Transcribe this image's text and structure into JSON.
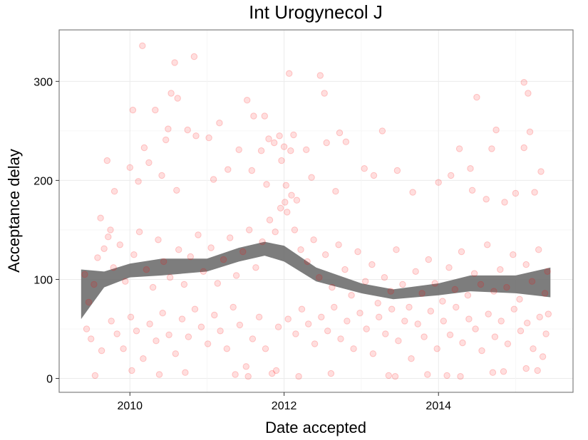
{
  "chart_data": {
    "type": "scatter",
    "title": "Int Urogynecol J",
    "xlabel": "Date accepted",
    "ylabel": "Acceptance delay",
    "x_axis": "date",
    "xlim": [
      "2009-01-31",
      "2015-09-30"
    ],
    "ylim": [
      -14,
      352
    ],
    "x_ticks": [
      {
        "value": "2010-01-01",
        "label": "2010"
      },
      {
        "value": "2012-01-01",
        "label": "2012"
      },
      {
        "value": "2014-01-01",
        "label": "2014"
      }
    ],
    "y_ticks": [
      {
        "value": 0,
        "label": "0"
      },
      {
        "value": 100,
        "label": "100"
      },
      {
        "value": 200,
        "label": "200"
      },
      {
        "value": 300,
        "label": "300"
      }
    ],
    "grid": true,
    "point_color": "#ff0000",
    "point_opacity": 0.13,
    "smooth_color": "#666666",
    "smooth_band": [
      {
        "x": "2009-05-15",
        "lower": 60,
        "upper": 110
      },
      {
        "x": "2009-09-01",
        "lower": 92,
        "upper": 108
      },
      {
        "x": "2010-01-01",
        "lower": 102,
        "upper": 116
      },
      {
        "x": "2010-06-01",
        "lower": 104,
        "upper": 121
      },
      {
        "x": "2011-01-01",
        "lower": 108,
        "upper": 121
      },
      {
        "x": "2011-06-01",
        "lower": 118,
        "upper": 132
      },
      {
        "x": "2011-10-01",
        "lower": 124,
        "upper": 138
      },
      {
        "x": "2012-01-01",
        "lower": 118,
        "upper": 134
      },
      {
        "x": "2012-06-01",
        "lower": 98,
        "upper": 112
      },
      {
        "x": "2013-01-01",
        "lower": 86,
        "upper": 96
      },
      {
        "x": "2013-06-01",
        "lower": 80,
        "upper": 90
      },
      {
        "x": "2014-01-01",
        "lower": 84,
        "upper": 96
      },
      {
        "x": "2014-06-01",
        "lower": 88,
        "upper": 104
      },
      {
        "x": "2015-01-01",
        "lower": 86,
        "upper": 104
      },
      {
        "x": "2015-06-15",
        "lower": 82,
        "upper": 112
      }
    ],
    "points": [
      [
        "2010-03-01",
        336
      ],
      [
        "2010-11-01",
        325
      ],
      [
        "2010-08-01",
        319
      ],
      [
        "2012-01-25",
        308
      ],
      [
        "2012-06-20",
        306
      ],
      [
        "2015-02-10",
        299
      ],
      [
        "2015-03-01",
        288
      ],
      [
        "2010-07-15",
        288
      ],
      [
        "2012-07-10",
        288
      ],
      [
        "2014-07-01",
        284
      ],
      [
        "2010-08-15",
        283
      ],
      [
        "2011-07-10",
        281
      ],
      [
        "2010-01-15",
        271
      ],
      [
        "2010-05-01",
        271
      ],
      [
        "2011-03-01",
        258
      ],
      [
        "2011-10-01",
        265
      ],
      [
        "2011-08-10",
        265
      ],
      [
        "2010-07-01",
        252
      ],
      [
        "2010-10-01",
        251
      ],
      [
        "2010-11-10",
        245
      ],
      [
        "2012-09-20",
        248
      ],
      [
        "2012-10-20",
        239
      ],
      [
        "2013-04-10",
        250
      ],
      [
        "2014-10-01",
        251
      ],
      [
        "2015-03-10",
        249
      ],
      [
        "2011-12-10",
        245
      ],
      [
        "2012-02-15",
        246
      ],
      [
        "2011-06-01",
        231
      ],
      [
        "2011-10-20",
        242
      ],
      [
        "2011-11-15",
        238
      ],
      [
        "2012-01-01",
        234
      ],
      [
        "2009-09-15",
        220
      ],
      [
        "2009-10-20",
        189
      ],
      [
        "2010-03-10",
        233
      ],
      [
        "2010-06-20",
        241
      ],
      [
        "2011-01-10",
        243
      ],
      [
        "2011-09-15",
        230
      ],
      [
        "2011-12-20",
        220
      ],
      [
        "2012-02-01",
        230
      ],
      [
        "2012-04-15",
        231
      ],
      [
        "2012-07-20",
        238
      ],
      [
        "2014-09-10",
        232
      ],
      [
        "2015-02-10",
        233
      ],
      [
        "2013-01-15",
        212
      ],
      [
        "2014-04-10",
        232
      ],
      [
        "2014-06-01",
        212
      ],
      [
        "2015-05-01",
        209
      ],
      [
        "2009-08-15",
        162
      ],
      [
        "2009-10-01",
        150
      ],
      [
        "2010-01-01",
        213
      ],
      [
        "2010-02-10",
        199
      ],
      [
        "2010-04-01",
        218
      ],
      [
        "2010-06-01",
        205
      ],
      [
        "2010-08-10",
        190
      ],
      [
        "2011-02-01",
        201
      ],
      [
        "2011-04-10",
        211
      ],
      [
        "2011-08-01",
        210
      ],
      [
        "2011-10-10",
        196
      ],
      [
        "2012-01-10",
        195
      ],
      [
        "2012-03-01",
        180
      ],
      [
        "2012-05-10",
        203
      ],
      [
        "2012-09-01",
        189
      ],
      [
        "2013-03-01",
        205
      ],
      [
        "2013-06-20",
        210
      ],
      [
        "2013-09-01",
        188
      ],
      [
        "2014-01-01",
        198
      ],
      [
        "2014-03-01",
        205
      ],
      [
        "2014-06-10",
        190
      ],
      [
        "2014-08-15",
        181
      ],
      [
        "2014-11-10",
        178
      ],
      [
        "2015-01-01",
        187
      ],
      [
        "2015-04-01",
        188
      ],
      [
        "2009-06-01",
        105
      ],
      [
        "2009-06-20",
        77
      ],
      [
        "2009-07-15",
        95
      ],
      [
        "2009-08-01",
        122
      ],
      [
        "2009-09-01",
        131
      ],
      [
        "2009-09-20",
        143
      ],
      [
        "2009-10-15",
        112
      ],
      [
        "2009-11-15",
        135
      ],
      [
        "2009-12-10",
        98
      ],
      [
        "2010-01-20",
        125
      ],
      [
        "2010-02-15",
        148
      ],
      [
        "2010-03-20",
        110
      ],
      [
        "2010-04-20",
        92
      ],
      [
        "2010-05-15",
        140
      ],
      [
        "2010-06-10",
        118
      ],
      [
        "2010-07-10",
        102
      ],
      [
        "2010-08-20",
        130
      ],
      [
        "2010-09-15",
        95
      ],
      [
        "2010-10-15",
        123
      ],
      [
        "2010-11-20",
        145
      ],
      [
        "2010-12-15",
        108
      ],
      [
        "2011-01-20",
        132
      ],
      [
        "2011-02-20",
        96
      ],
      [
        "2011-03-20",
        120
      ],
      [
        "2011-04-20",
        142
      ],
      [
        "2011-05-20",
        104
      ],
      [
        "2011-06-20",
        128
      ],
      [
        "2011-07-20",
        150
      ],
      [
        "2011-08-20",
        112
      ],
      [
        "2011-09-20",
        138
      ],
      [
        "2011-10-25",
        160
      ],
      [
        "2011-11-20",
        148
      ],
      [
        "2011-12-15",
        172
      ],
      [
        "2012-01-05",
        178
      ],
      [
        "2012-01-15",
        168
      ],
      [
        "2012-02-05",
        185
      ],
      [
        "2012-02-20",
        150
      ],
      [
        "2012-03-20",
        130
      ],
      [
        "2012-04-20",
        118
      ],
      [
        "2012-05-20",
        140
      ],
      [
        "2012-06-15",
        102
      ],
      [
        "2012-07-15",
        125
      ],
      [
        "2012-08-15",
        92
      ],
      [
        "2012-09-15",
        135
      ],
      [
        "2012-10-15",
        110
      ],
      [
        "2012-11-15",
        84
      ],
      [
        "2012-12-15",
        128
      ],
      [
        "2013-01-20",
        98
      ],
      [
        "2013-02-20",
        115
      ],
      [
        "2013-03-20",
        76
      ],
      [
        "2013-04-20",
        102
      ],
      [
        "2013-05-20",
        88
      ],
      [
        "2013-06-15",
        130
      ],
      [
        "2013-07-15",
        95
      ],
      [
        "2013-08-15",
        72
      ],
      [
        "2013-09-15",
        108
      ],
      [
        "2013-10-15",
        86
      ],
      [
        "2013-11-15",
        120
      ],
      [
        "2013-12-15",
        96
      ],
      [
        "2014-01-20",
        78
      ],
      [
        "2014-02-20",
        112
      ],
      [
        "2014-03-20",
        90
      ],
      [
        "2014-04-20",
        128
      ],
      [
        "2014-05-20",
        84
      ],
      [
        "2014-06-20",
        106
      ],
      [
        "2014-07-20",
        95
      ],
      [
        "2014-08-20",
        135
      ],
      [
        "2014-09-20",
        88
      ],
      [
        "2014-10-20",
        110
      ],
      [
        "2014-11-20",
        92
      ],
      [
        "2014-12-20",
        125
      ],
      [
        "2015-01-20",
        80
      ],
      [
        "2015-02-20",
        115
      ],
      [
        "2015-03-20",
        98
      ],
      [
        "2015-04-20",
        130
      ],
      [
        "2015-05-20",
        86
      ],
      [
        "2015-06-01",
        108
      ],
      [
        "2009-06-10",
        50
      ],
      [
        "2009-07-01",
        40
      ],
      [
        "2009-08-20",
        28
      ],
      [
        "2009-10-05",
        58
      ],
      [
        "2009-11-01",
        45
      ],
      [
        "2009-12-01",
        30
      ],
      [
        "2010-01-05",
        62
      ],
      [
        "2010-02-01",
        48
      ],
      [
        "2010-03-05",
        20
      ],
      [
        "2010-04-05",
        55
      ],
      [
        "2010-05-05",
        38
      ],
      [
        "2010-06-05",
        66
      ],
      [
        "2010-07-05",
        44
      ],
      [
        "2010-08-05",
        25
      ],
      [
        "2010-09-05",
        60
      ],
      [
        "2010-10-05",
        42
      ],
      [
        "2010-11-05",
        70
      ],
      [
        "2010-12-05",
        52
      ],
      [
        "2011-01-05",
        35
      ],
      [
        "2011-02-05",
        64
      ],
      [
        "2011-03-05",
        48
      ],
      [
        "2011-04-05",
        30
      ],
      [
        "2011-05-05",
        72
      ],
      [
        "2011-06-05",
        54
      ],
      [
        "2011-07-05",
        12
      ],
      [
        "2011-08-05",
        40
      ],
      [
        "2011-09-05",
        62
      ],
      [
        "2011-10-05",
        30
      ],
      [
        "2011-11-05",
        5
      ],
      [
        "2011-11-25",
        8
      ],
      [
        "2011-12-05",
        52
      ],
      [
        "2012-01-20",
        60
      ],
      [
        "2012-02-25",
        45
      ],
      [
        "2012-03-25",
        70
      ],
      [
        "2012-04-25",
        55
      ],
      [
        "2012-05-25",
        35
      ],
      [
        "2012-06-25",
        62
      ],
      [
        "2012-07-25",
        48
      ],
      [
        "2012-08-25",
        72
      ],
      [
        "2012-09-25",
        40
      ],
      [
        "2012-10-25",
        58
      ],
      [
        "2012-11-25",
        30
      ],
      [
        "2012-12-25",
        66
      ],
      [
        "2013-01-25",
        50
      ],
      [
        "2013-02-25",
        25
      ],
      [
        "2013-03-25",
        62
      ],
      [
        "2013-04-25",
        45
      ],
      [
        "2013-05-25",
        70
      ],
      [
        "2013-06-25",
        38
      ],
      [
        "2013-07-25",
        58
      ],
      [
        "2013-08-25",
        20
      ],
      [
        "2013-09-25",
        55
      ],
      [
        "2013-10-25",
        42
      ],
      [
        "2013-11-25",
        68
      ],
      [
        "2013-12-25",
        30
      ],
      [
        "2014-01-25",
        58
      ],
      [
        "2014-02-25",
        44
      ],
      [
        "2014-03-25",
        72
      ],
      [
        "2014-04-25",
        36
      ],
      [
        "2014-05-25",
        60
      ],
      [
        "2014-06-25",
        50
      ],
      [
        "2014-07-25",
        28
      ],
      [
        "2014-08-25",
        65
      ],
      [
        "2014-09-25",
        42
      ],
      [
        "2014-10-25",
        58
      ],
      [
        "2014-11-25",
        35
      ],
      [
        "2014-12-25",
        70
      ],
      [
        "2015-01-25",
        48
      ],
      [
        "2015-02-25",
        56
      ],
      [
        "2015-03-25",
        30
      ],
      [
        "2015-04-25",
        62
      ],
      [
        "2015-05-25",
        45
      ],
      [
        "2015-06-05",
        65
      ],
      [
        "2009-07-20",
        3
      ],
      [
        "2010-01-10",
        8
      ],
      [
        "2010-05-20",
        4
      ],
      [
        "2010-09-20",
        6
      ],
      [
        "2011-05-15",
        4
      ],
      [
        "2011-07-15",
        2
      ],
      [
        "2012-03-10",
        2
      ],
      [
        "2012-08-10",
        5
      ],
      [
        "2013-05-10",
        3
      ],
      [
        "2013-06-10",
        2
      ],
      [
        "2013-11-10",
        4
      ],
      [
        "2014-02-10",
        3
      ],
      [
        "2014-04-15",
        2
      ],
      [
        "2014-09-15",
        6
      ],
      [
        "2014-11-05",
        7
      ],
      [
        "2015-02-20",
        10
      ],
      [
        "2015-04-15",
        8
      ],
      [
        "2015-05-10",
        22
      ]
    ]
  }
}
